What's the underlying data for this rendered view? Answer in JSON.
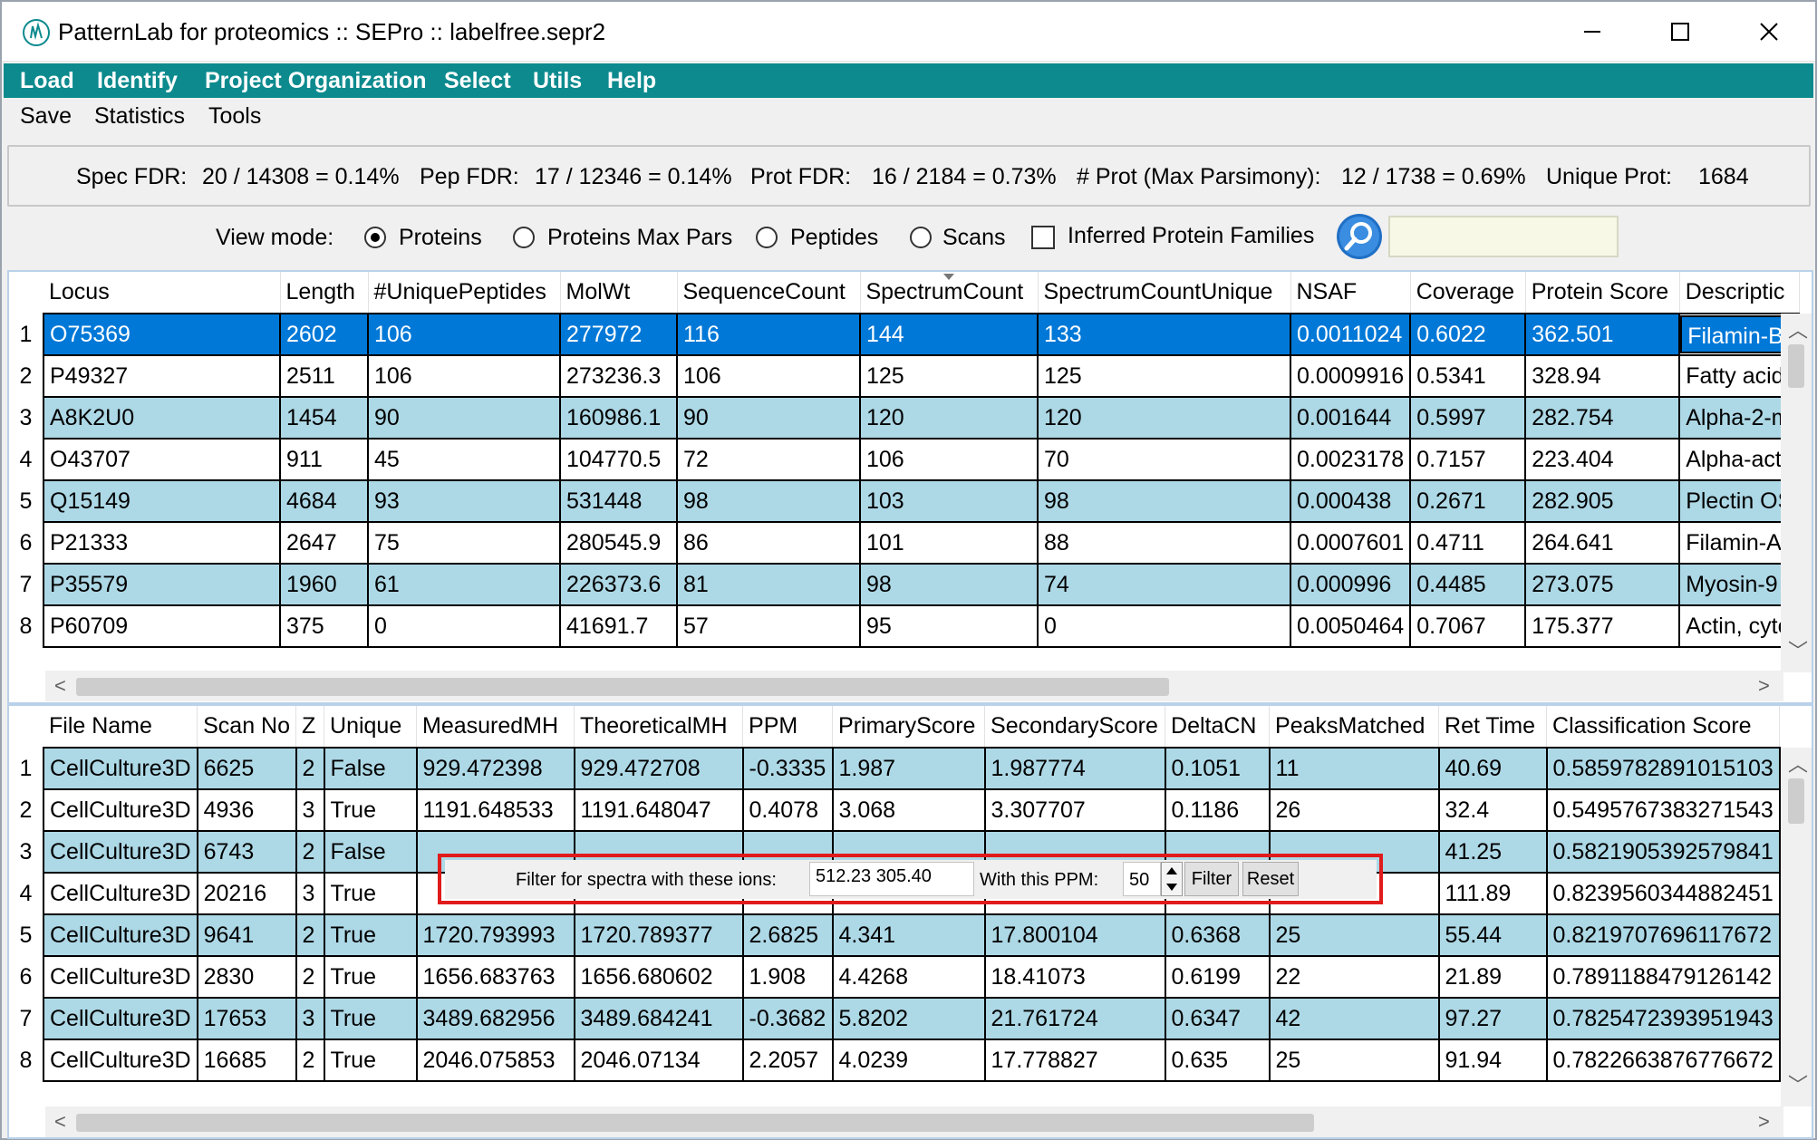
{
  "window": {
    "title": "PatternLab for proteomics :: SEPro :: labelfree.sepr2"
  },
  "menu": {
    "top": [
      "Load",
      "Identify",
      "Project Organization",
      "Select",
      "Utils",
      "Help"
    ],
    "second": [
      "Save",
      "Statistics",
      "Tools"
    ]
  },
  "fdr": {
    "spec_label": "Spec FDR:",
    "spec_value": "20 / 14308 = 0.14%",
    "pep_label": "Pep FDR:",
    "pep_value": "17 / 12346 = 0.14%",
    "prot_label": "Prot FDR:",
    "prot_value": "16 / 2184 = 0.73%",
    "maxpars_label": "# Prot (Max Parsimony):",
    "maxpars_value": "12 / 1738 = 0.69%",
    "unique_label": "Unique Prot:",
    "unique_value": "1684"
  },
  "view_mode": {
    "label": "View mode:",
    "options": [
      "Proteins",
      "Proteins Max Pars",
      "Peptides",
      "Scans"
    ],
    "selected": "Proteins",
    "families_label": "Inferred Protein Families",
    "families_checked": false,
    "search_value": ""
  },
  "protein_table": {
    "columns": [
      "Locus",
      "Length",
      "#UniquePeptides",
      "MolWt",
      "SequenceCount",
      "SpectrumCount",
      "SpectrumCountUnique",
      "NSAF",
      "Coverage",
      "Protein Score",
      "Descriptic"
    ],
    "sorted_column": "SpectrumCount",
    "rows": [
      [
        "O75369",
        "2602",
        "106",
        "277972",
        "116",
        "144",
        "133",
        "0.0011024",
        "0.6022",
        "362.501",
        "Filamin-B"
      ],
      [
        "P49327",
        "2511",
        "106",
        "273236.3",
        "106",
        "125",
        "125",
        "0.0009916",
        "0.5341",
        "328.94",
        "Fatty acid"
      ],
      [
        "A8K2U0",
        "1454",
        "90",
        "160986.1",
        "90",
        "120",
        "120",
        "0.001644",
        "0.5997",
        "282.754",
        "Alpha-2-m"
      ],
      [
        "O43707",
        "911",
        "45",
        "104770.5",
        "72",
        "106",
        "70",
        "0.0023178",
        "0.7157",
        "223.404",
        "Alpha-acti"
      ],
      [
        "Q15149",
        "4684",
        "93",
        "531448",
        "98",
        "103",
        "98",
        "0.000438",
        "0.2671",
        "282.905",
        "Plectin OS"
      ],
      [
        "P21333",
        "2647",
        "75",
        "280545.9",
        "86",
        "101",
        "88",
        "0.0007601",
        "0.4711",
        "264.641",
        "Filamin-A"
      ],
      [
        "P35579",
        "1960",
        "61",
        "226373.6",
        "81",
        "98",
        "74",
        "0.000996",
        "0.4485",
        "273.075",
        "Myosin-9"
      ],
      [
        "P60709",
        "375",
        "0",
        "41691.7",
        "57",
        "95",
        "0",
        "0.0050464",
        "0.7067",
        "175.377",
        "Actin, cytc"
      ]
    ]
  },
  "psm_table": {
    "columns": [
      "File Name",
      "Scan No",
      "Z",
      "Unique",
      "MeasuredMH",
      "TheoreticalMH",
      "PPM",
      "PrimaryScore",
      "SecondaryScore",
      "DeltaCN",
      "PeaksMatched",
      "Ret Time",
      "Classification Score"
    ],
    "rows": [
      [
        "CellCulture3D",
        "6625",
        "2",
        "False",
        "929.472398",
        "929.472708",
        "-0.3335",
        "1.987",
        "1.987774",
        "0.1051",
        "11",
        "40.69",
        "0.5859782891015103"
      ],
      [
        "CellCulture3D",
        "4936",
        "3",
        "True",
        "1191.648533",
        "1191.648047",
        "0.4078",
        "3.068",
        "3.307707",
        "0.1186",
        "26",
        "32.4",
        "0.5495767383271543"
      ],
      [
        "CellCulture3D",
        "6743",
        "2",
        "False",
        "",
        "",
        "",
        "",
        "",
        "",
        "",
        "41.25",
        "0.5821905392579841"
      ],
      [
        "CellCulture3D",
        "20216",
        "3",
        "True",
        "",
        "",
        "",
        "",
        "",
        "",
        "",
        "111.89",
        "0.8239560344882451"
      ],
      [
        "CellCulture3D",
        "9641",
        "2",
        "True",
        "1720.793993",
        "1720.789377",
        "2.6825",
        "4.341",
        "17.800104",
        "0.6368",
        "25",
        "55.44",
        "0.8219707696117672"
      ],
      [
        "CellCulture3D",
        "2830",
        "2",
        "True",
        "1656.683763",
        "1656.680602",
        "1.908",
        "4.4268",
        "18.41073",
        "0.6199",
        "22",
        "21.89",
        "0.7891188479126142"
      ],
      [
        "CellCulture3D",
        "17653",
        "3",
        "True",
        "3489.682956",
        "3489.684241",
        "-0.3682",
        "5.8202",
        "21.761724",
        "0.6347",
        "42",
        "97.27",
        "0.7825472393951943"
      ],
      [
        "CellCulture3D",
        "16685",
        "2",
        "True",
        "2046.075853",
        "2046.07134",
        "2.2057",
        "4.0239",
        "17.778827",
        "0.635",
        "25",
        "91.94",
        "0.7822663876776672"
      ]
    ]
  },
  "filter": {
    "ions_label": "Filter for spectra with these ions:",
    "ions_value": "512.23 305.40",
    "ppm_label": "With this PPM:",
    "ppm_value": "50",
    "filter_button": "Filter",
    "reset_button": "Reset"
  },
  "colors": {
    "menu_bar": "#0c8a8e",
    "row_alt": "#add8e6",
    "row_selected": "#0078d7",
    "highlight_box": "#e01b1b"
  }
}
